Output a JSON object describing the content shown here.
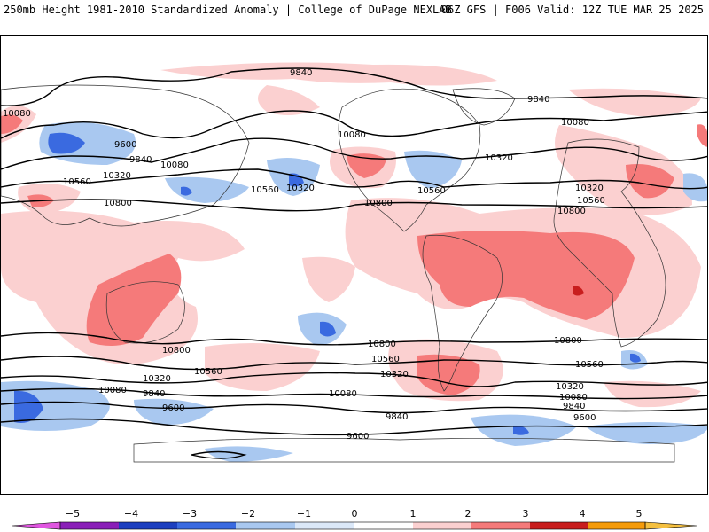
{
  "header": {
    "left": "250mb Height 1981-2010 Standardized Anomaly | College of DuPage NEXLAB",
    "right": "06Z GFS | F006 Valid: 12Z TUE MAR 25 2025"
  },
  "contours": {
    "labels": [
      {
        "text": "9840"
      },
      {
        "text": "9840"
      },
      {
        "text": "10080"
      },
      {
        "text": "10080"
      },
      {
        "text": "9600"
      },
      {
        "text": "9840"
      },
      {
        "text": "10080"
      },
      {
        "text": "10320"
      },
      {
        "text": "10080"
      },
      {
        "text": "10320"
      },
      {
        "text": "10560"
      },
      {
        "text": "10560"
      },
      {
        "text": "10320"
      },
      {
        "text": "10560"
      },
      {
        "text": "10800"
      },
      {
        "text": "10320"
      },
      {
        "text": "10800"
      },
      {
        "text": "10560"
      },
      {
        "text": "10800"
      },
      {
        "text": "10800"
      },
      {
        "text": "10800"
      },
      {
        "text": "10800"
      },
      {
        "text": "10560"
      },
      {
        "text": "10320"
      },
      {
        "text": "10560"
      },
      {
        "text": "10560"
      },
      {
        "text": "10320"
      },
      {
        "text": "10080"
      },
      {
        "text": "9840"
      },
      {
        "text": "9600"
      },
      {
        "text": "10080"
      },
      {
        "text": "9840"
      },
      {
        "text": "10320"
      },
      {
        "text": "10080"
      },
      {
        "text": "9840"
      },
      {
        "text": "9600"
      },
      {
        "text": "9600"
      }
    ]
  },
  "colorbar": {
    "ticks": [
      "−5",
      "−4",
      "−3",
      "−2",
      "−1",
      "0",
      "1",
      "2",
      "3",
      "4",
      "5"
    ],
    "colors": [
      "#e055e0",
      "#8a1fb8",
      "#1d3fbf",
      "#3a6ae0",
      "#a9c8f0",
      "#dbe8f8",
      "#ffffff",
      "#fbd0d0",
      "#f57a7a",
      "#c81e1e",
      "#f59b0a",
      "#f5c040"
    ]
  }
}
